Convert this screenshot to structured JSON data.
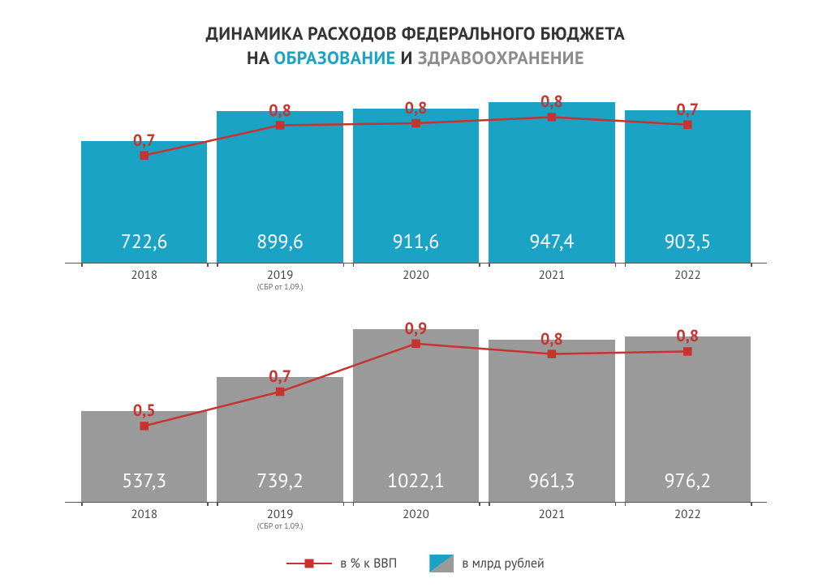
{
  "title": {
    "line1": "ДИНАМИКА РАСХОДОВ ФЕДЕРАЛЬНОГО БЮДЖЕТА",
    "na": "НА",
    "edu": "ОБРАЗОВАНИЕ",
    "i": "И",
    "health": "ЗДРАВООХРАНЕНИЕ",
    "color_main": "#333333",
    "color_edu": "#1aa3c4",
    "color_health": "#8c8c8c"
  },
  "legend": {
    "line_label": "в % к ВВП",
    "bar_label": "в млрд рублей"
  },
  "colors": {
    "edu_bar": "#1aa3c4",
    "health_bar": "#9a9a9a",
    "line": "#c73430",
    "bar_value_text": "#ffffff",
    "baseline": "#555555",
    "background": "#ffffff"
  },
  "layout": {
    "barAreaHeight": 220,
    "barMax": 1050,
    "barWidthRatio": 1.0,
    "lineLabelOffsetY": -6
  },
  "charts": {
    "top": {
      "bar_color": "#1aa3c4",
      "line_color": "#c73430",
      "line_label_color": "#c73430",
      "years": [
        "2018",
        "2019",
        "2020",
        "2021",
        "2022"
      ],
      "year_sub": [
        "",
        "(СБР от 1.09.)",
        "",
        "",
        ""
      ],
      "bar_values": [
        722.6,
        899.6,
        911.6,
        947.4,
        903.5
      ],
      "bar_value_labels": [
        "722,6",
        "899,6",
        "911,6",
        "947,4",
        "903,5"
      ],
      "line_values": [
        0.7,
        0.8,
        0.8,
        0.8,
        0.7
      ],
      "line_labels": [
        "0,7",
        "0,8",
        "0,8",
        "0,8",
        "0,7"
      ]
    },
    "bottom": {
      "bar_color": "#9a9a9a",
      "line_color": "#c73430",
      "line_label_color": "#c73430",
      "years": [
        "2018",
        "2019",
        "2020",
        "2021",
        "2022"
      ],
      "year_sub": [
        "",
        "(СБР от 1.09.)",
        "",
        "",
        ""
      ],
      "bar_values": [
        537.3,
        739.2,
        1022.1,
        961.3,
        976.2
      ],
      "bar_value_labels": [
        "537,3",
        "739,2",
        "1022,1",
        "961,3",
        "976,2"
      ],
      "line_values": [
        0.5,
        0.7,
        0.9,
        0.8,
        0.8
      ],
      "line_labels": [
        "0,5",
        "0,7",
        "0,9",
        "0,8",
        "0,8"
      ]
    }
  }
}
